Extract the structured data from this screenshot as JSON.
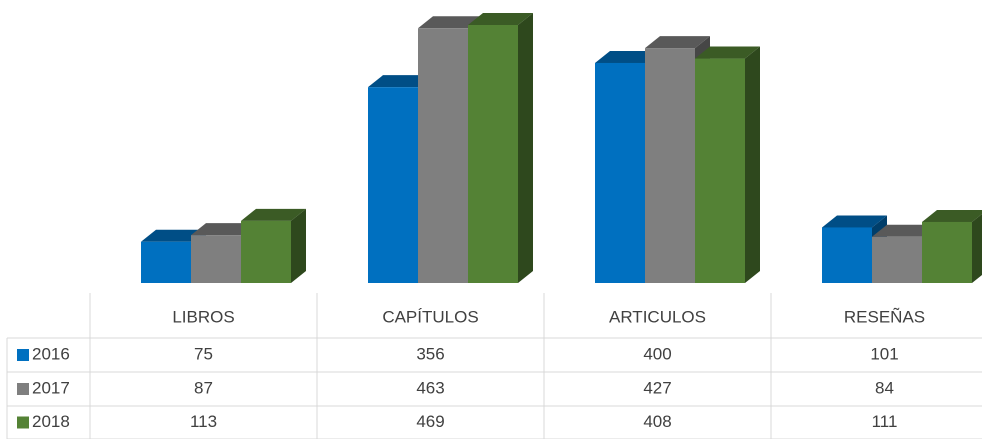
{
  "chart_data": {
    "type": "bar3d",
    "categories": [
      "LIBROS",
      "CAPÍTULOS",
      "ARTICULOS",
      "RESEÑAS"
    ],
    "series": [
      {
        "name": "2016",
        "color": "#0070c0",
        "values": [
          75,
          356,
          400,
          101
        ]
      },
      {
        "name": "2017",
        "color": "#7f7f7f",
        "values": [
          87,
          463,
          427,
          84
        ]
      },
      {
        "name": "2018",
        "color": "#548235",
        "values": [
          113,
          469,
          408,
          111
        ]
      }
    ]
  }
}
